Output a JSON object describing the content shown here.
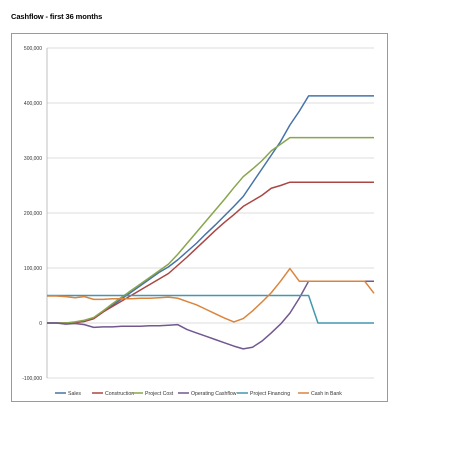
{
  "title": "Cashflow - first 36 months",
  "chart_data": {
    "type": "line",
    "title": "Cashflow - first 36 months",
    "xlabel": "",
    "ylabel": "",
    "ylim": [
      -100000,
      500000
    ],
    "yticks": [
      -100000,
      0,
      100000,
      200000,
      300000,
      400000,
      500000
    ],
    "ytick_labels": [
      "-100,000",
      "0",
      "100,000",
      "200,000",
      "300,000",
      "400,000",
      "500,000"
    ],
    "grid": true,
    "legend_position": "bottom",
    "x": [
      1,
      2,
      3,
      4,
      5,
      6,
      7,
      8,
      9,
      10,
      11,
      12,
      13,
      14,
      15,
      16,
      17,
      18,
      19,
      20,
      21,
      22,
      23,
      24,
      25,
      26,
      27,
      28,
      29,
      30,
      31,
      32,
      33,
      34,
      35,
      36
    ],
    "series": [
      {
        "name": "Sales",
        "color": "#4573a7",
        "values": [
          0,
          0,
          0,
          1000,
          3000,
          8000,
          20000,
          32000,
          44000,
          56000,
          68000,
          80000,
          92000,
          102000,
          115000,
          130000,
          145000,
          162000,
          178000,
          195000,
          212000,
          230000,
          255000,
          280000,
          305000,
          330000,
          360000,
          385000,
          413000,
          413000,
          413000,
          413000,
          413000,
          413000,
          413000,
          413000
        ]
      },
      {
        "name": "Construction",
        "color": "#aa4643",
        "values": [
          0,
          0,
          0,
          1000,
          3000,
          8000,
          20000,
          30000,
          40000,
          50000,
          60000,
          70000,
          80000,
          90000,
          105000,
          120000,
          136000,
          152000,
          168000,
          183000,
          197000,
          212000,
          222000,
          232000,
          245000,
          250000,
          256000,
          256000,
          256000,
          256000,
          256000,
          256000,
          256000,
          256000,
          256000,
          256000
        ]
      },
      {
        "name": "Project Cost",
        "color": "#89a54e",
        "values": [
          0,
          0,
          0,
          2000,
          5000,
          10000,
          22000,
          35000,
          47000,
          59000,
          71000,
          83000,
          95000,
          107000,
          125000,
          145000,
          165000,
          185000,
          205000,
          225000,
          246000,
          266000,
          280000,
          295000,
          313000,
          325000,
          337000,
          337000,
          337000,
          337000,
          337000,
          337000,
          337000,
          337000,
          337000,
          337000
        ]
      },
      {
        "name": "Operating Cashflow",
        "color": "#71588f",
        "values": [
          0,
          0,
          -2000,
          -1000,
          -3000,
          -8000,
          -7000,
          -7000,
          -6000,
          -6000,
          -6000,
          -5000,
          -5000,
          -4000,
          -3000,
          -12000,
          -18000,
          -24000,
          -30000,
          -36000,
          -42000,
          -47000,
          -44000,
          -33000,
          -18000,
          -2000,
          18000,
          45000,
          76000,
          76000,
          76000,
          76000,
          76000,
          76000,
          76000,
          76000
        ]
      },
      {
        "name": "Project Financing",
        "color": "#4198af",
        "values": [
          50000,
          50000,
          50000,
          50000,
          50000,
          50000,
          50000,
          50000,
          50000,
          50000,
          50000,
          50000,
          50000,
          50000,
          50000,
          50000,
          50000,
          50000,
          50000,
          50000,
          50000,
          50000,
          50000,
          50000,
          50000,
          50000,
          50000,
          50000,
          50000,
          0,
          0,
          0,
          0,
          0,
          0,
          0
        ]
      },
      {
        "name": "Cash in Bank",
        "color": "#db843d",
        "values": [
          49000,
          49000,
          48000,
          46000,
          48000,
          43000,
          43000,
          44000,
          44000,
          44000,
          45000,
          45000,
          46000,
          47000,
          45000,
          39000,
          33000,
          25000,
          17000,
          9000,
          2000,
          8000,
          22000,
          38000,
          55000,
          76000,
          99000,
          76000,
          76000,
          76000,
          76000,
          76000,
          76000,
          76000,
          76000,
          54000
        ]
      }
    ]
  }
}
